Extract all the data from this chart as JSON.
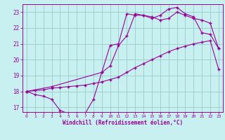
{
  "xlabel": "Windchill (Refroidissement éolien,°C)",
  "bg_color": "#c8f0f0",
  "line_color": "#990099",
  "grid_color": "#99cccc",
  "xlim": [
    -0.5,
    23.5
  ],
  "ylim": [
    16.7,
    23.5
  ],
  "yticks": [
    17,
    18,
    19,
    20,
    21,
    22,
    23
  ],
  "xticks": [
    0,
    1,
    2,
    3,
    4,
    5,
    6,
    7,
    8,
    9,
    10,
    11,
    12,
    13,
    14,
    15,
    16,
    17,
    18,
    19,
    20,
    21,
    22,
    23
  ],
  "line1_x": [
    0,
    1,
    2,
    3,
    4,
    5,
    6,
    7,
    8,
    9,
    10,
    11,
    12,
    13,
    14,
    15,
    16,
    17,
    18,
    19,
    20,
    21,
    22,
    23
  ],
  "line1_y": [
    18.0,
    17.8,
    17.7,
    17.5,
    16.8,
    16.6,
    16.6,
    16.6,
    17.5,
    19.2,
    20.9,
    21.0,
    22.9,
    22.8,
    22.8,
    22.6,
    22.8,
    23.2,
    23.3,
    22.9,
    22.7,
    21.7,
    21.6,
    20.7
  ],
  "line2_x": [
    0,
    1,
    2,
    3,
    4,
    5,
    6,
    7,
    8,
    9,
    10,
    11,
    12,
    13,
    14,
    15,
    16,
    17,
    18,
    19,
    20,
    21,
    22,
    23
  ],
  "line2_y": [
    18.0,
    18.05,
    18.1,
    18.2,
    18.25,
    18.3,
    18.35,
    18.4,
    18.5,
    18.6,
    18.75,
    18.9,
    19.2,
    19.5,
    19.75,
    20.0,
    20.25,
    20.5,
    20.7,
    20.85,
    21.0,
    21.1,
    21.2,
    19.4
  ],
  "line3_x": [
    0,
    3,
    9,
    10,
    11,
    12,
    13,
    14,
    15,
    16,
    17,
    18,
    19,
    20,
    21,
    22,
    23
  ],
  "line3_y": [
    18.0,
    18.3,
    19.2,
    19.6,
    20.9,
    21.5,
    22.9,
    22.8,
    22.7,
    22.5,
    22.6,
    23.0,
    22.8,
    22.6,
    22.5,
    22.3,
    20.7
  ]
}
